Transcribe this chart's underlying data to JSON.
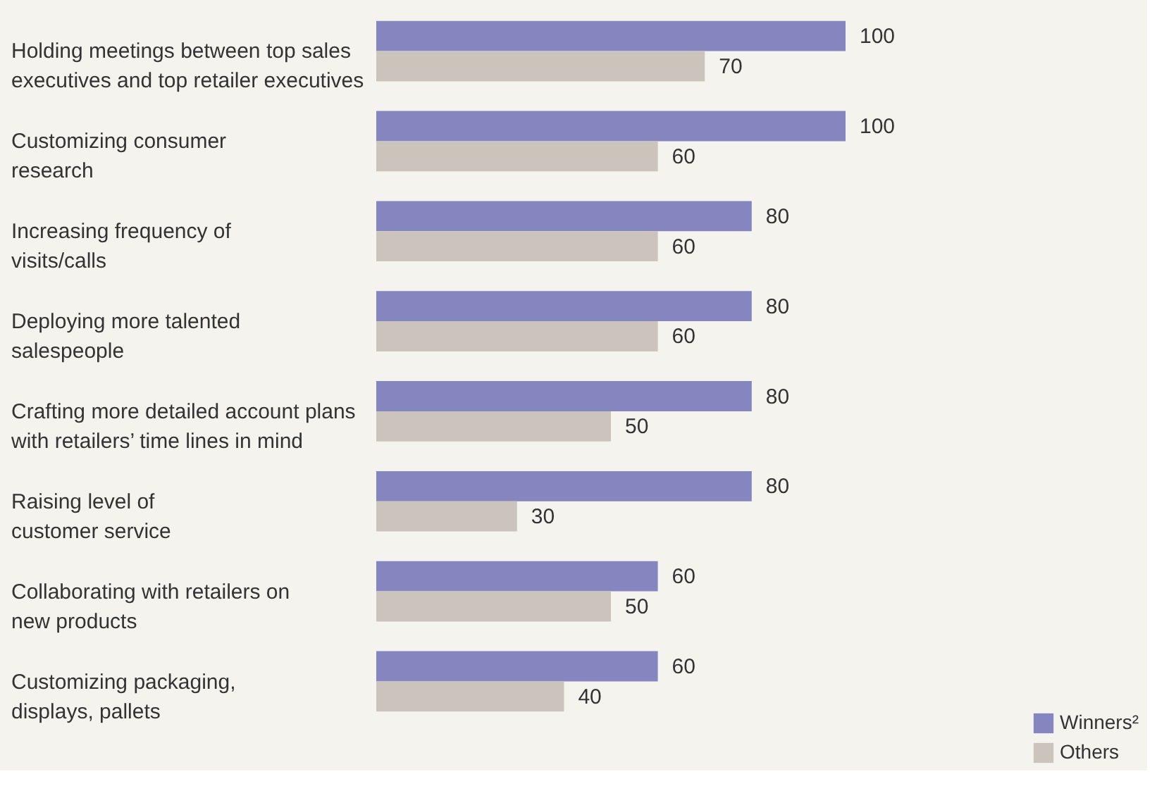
{
  "chart_data": {
    "type": "bar",
    "orientation": "horizontal",
    "categories": [
      "Holding meetings between top sales\nexecutives and top retailer executives",
      "Customizing consumer\nresearch",
      "Increasing frequency of\nvisits/calls",
      "Deploying more talented\nsalespeople",
      "Crafting more detailed account plans\nwith retailers’ time lines in mind",
      "Raising level of\ncustomer service",
      "Collaborating with retailers on\nnew products",
      "Customizing packaging,\ndisplays, pallets"
    ],
    "series": [
      {
        "name": "Winners²",
        "color": "#8585c0",
        "values": [
          100,
          100,
          80,
          80,
          80,
          80,
          60,
          60
        ]
      },
      {
        "name": "Others",
        "color": "#cbc4bc",
        "values": [
          70,
          60,
          60,
          60,
          50,
          30,
          50,
          40
        ]
      }
    ],
    "data_labels": true,
    "legend": "bottom right"
  }
}
